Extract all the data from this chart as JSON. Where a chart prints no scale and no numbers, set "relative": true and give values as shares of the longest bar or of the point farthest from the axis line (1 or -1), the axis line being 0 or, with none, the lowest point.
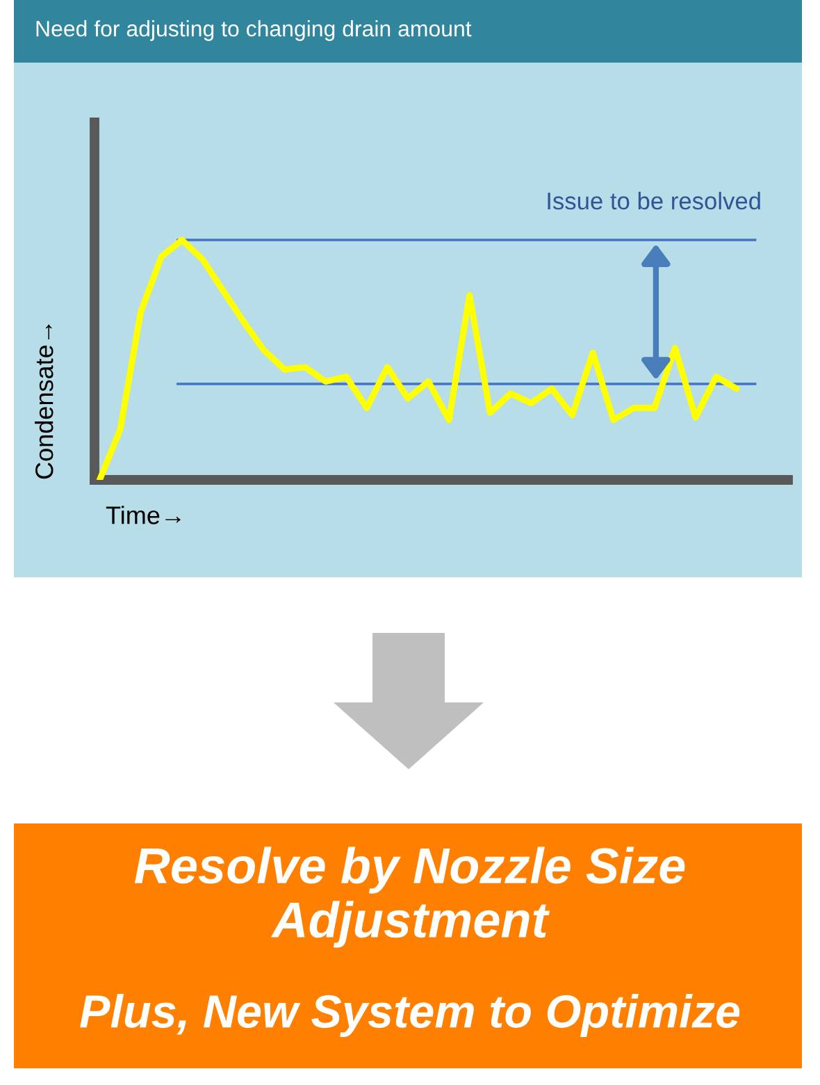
{
  "chart_data": {
    "type": "line",
    "title": "Need for adjusting to changing drain amount",
    "xlabel": "Time→",
    "ylabel": "Condensate→",
    "relative": true,
    "categories": [
      null,
      null,
      null,
      null,
      null,
      null,
      null,
      null,
      null,
      null,
      null,
      null,
      null,
      null,
      null,
      null,
      null,
      null,
      null,
      null,
      null,
      null,
      null,
      null,
      null,
      null,
      null,
      null,
      null,
      null,
      null,
      null
    ],
    "series": [
      {
        "color": "#ffff00",
        "values": [
          0,
          0.21,
          0.7,
          0.93,
          1.0,
          0.92,
          0.79,
          0.66,
          0.54,
          0.46,
          0.47,
          0.41,
          0.43,
          0.3,
          0.47,
          0.34,
          0.41,
          0.25,
          0.77,
          0.28,
          0.36,
          0.32,
          0.38,
          0.27,
          0.53,
          0.25,
          0.3,
          0.3,
          0.55,
          0.26,
          0.43,
          0.38
        ]
      }
    ],
    "ref_lines": [
      {
        "axis": "y",
        "value": 1.0,
        "color": "#4472c4"
      },
      {
        "axis": "y",
        "value": 0.4,
        "color": "#4472c4"
      }
    ],
    "annotations": [
      "Issue to be resolved",
      "Resolve by Nozzle Size Adjustment",
      "Plus, New System to Optimize"
    ]
  }
}
